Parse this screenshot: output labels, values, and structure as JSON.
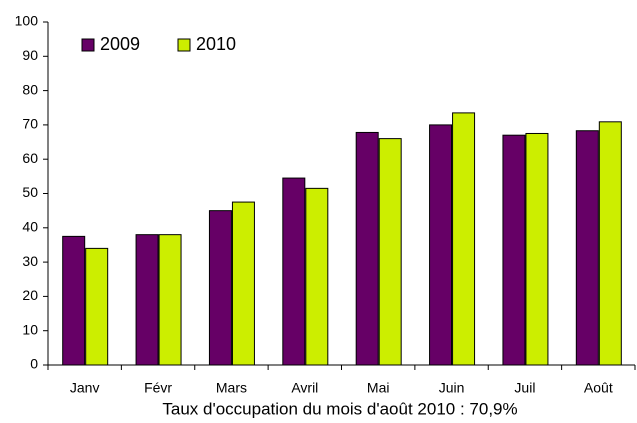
{
  "chart_data": {
    "type": "bar",
    "categories": [
      "Janv",
      "Févr",
      "Mars",
      "Avril",
      "Mai",
      "Juin",
      "Juil",
      "Août"
    ],
    "series": [
      {
        "name": "2009",
        "color": "#660066",
        "values": [
          37.5,
          38,
          45,
          54.5,
          67.8,
          70,
          67,
          68.3
        ]
      },
      {
        "name": "2010",
        "color": "#ccee00",
        "values": [
          34,
          38,
          47.5,
          51.5,
          66,
          73.5,
          67.5,
          70.9
        ]
      }
    ],
    "ylim": [
      0,
      100
    ],
    "yticks": [
      0,
      10,
      20,
      30,
      40,
      50,
      60,
      70,
      80,
      90,
      100
    ],
    "annotation": "Taux d'occupation du mois d'août 2010 : 70,9%",
    "legend": "top-left",
    "grid": false
  }
}
